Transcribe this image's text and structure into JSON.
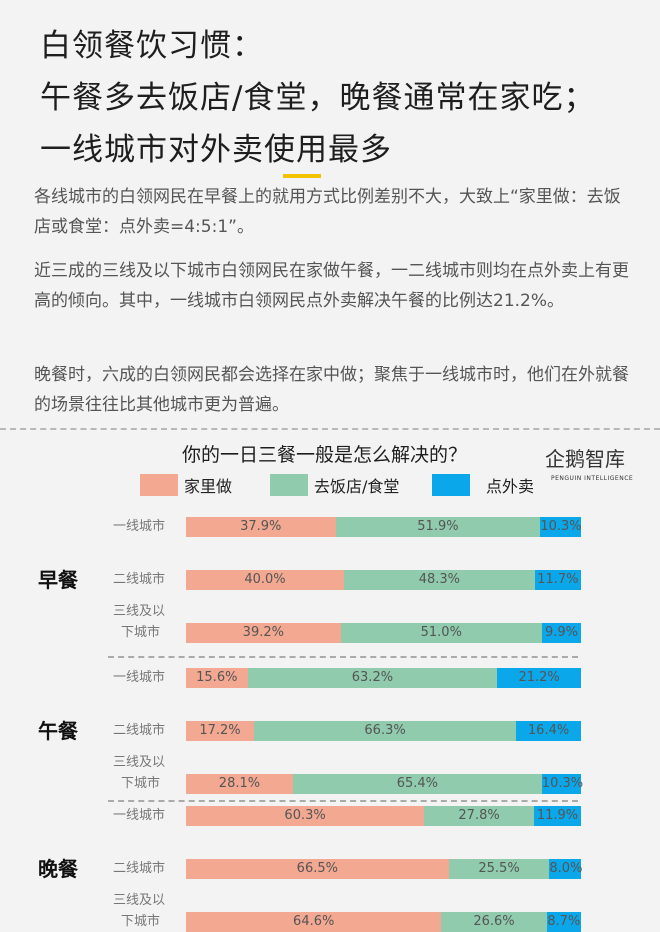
{
  "header": {
    "title_lines": [
      "白领餐饮习惯：",
      "午餐多去饭店/食堂，晚餐通常在家吃；",
      "一线城市对外卖使用最多"
    ],
    "paragraphs": [
      "各线城市的白领网民在早餐上的就用方式比例差别不大，大致上“家里做：去饭店或食堂：点外卖=4:5:1”。",
      "近三成的三线及以下城市白领网民在家做午餐，一二线城市则均在点外卖上有更高的倾向。其中，一线城市白领网民点外卖解决午餐的比例达21.2%。",
      "晚餐时，六成的白领网民都会选择在家中做；聚焦于一线城市时，他们在外就餐的场景往往比其他城市更为普遍。"
    ]
  },
  "logo": {
    "text": "企鹅智库",
    "subtext": "PENGUIN INTELLIGENCE"
  },
  "chart_data": {
    "type": "bar",
    "orientation": "horizontal",
    "stacked": true,
    "percent_stacked": true,
    "title": "你的一日三餐一般是怎么解决的？",
    "legend_position": "top",
    "series": [
      {
        "name": "家里做",
        "color": "#f2a891"
      },
      {
        "name": "去饭店/食堂",
        "color": "#8fcbac"
      },
      {
        "name": "点外卖",
        "color": "#0aa7ea"
      }
    ],
    "groups": [
      {
        "meal": "早餐",
        "rows": [
          {
            "city": [
              "一线城市"
            ],
            "values": [
              37.9,
              51.9,
              10.3
            ],
            "labels": [
              "37.9%",
              "51.9%",
              "10.3%"
            ]
          },
          {
            "city": [
              "二线城市"
            ],
            "values": [
              40.0,
              48.3,
              11.7
            ],
            "labels": [
              "40.0%",
              "48.3%",
              "11.7%"
            ]
          },
          {
            "city": [
              "三线及以",
              "下城市"
            ],
            "values": [
              39.2,
              51.0,
              9.9
            ],
            "labels": [
              "39.2%",
              "51.0%",
              "9.9%"
            ]
          }
        ]
      },
      {
        "meal": "午餐",
        "rows": [
          {
            "city": [
              "一线城市"
            ],
            "values": [
              15.6,
              63.2,
              21.2
            ],
            "labels": [
              "15.6%",
              "63.2%",
              "21.2%"
            ]
          },
          {
            "city": [
              "二线城市"
            ],
            "values": [
              17.2,
              66.3,
              16.4
            ],
            "labels": [
              "17.2%",
              "66.3%",
              "16.4%"
            ]
          },
          {
            "city": [
              "三线及以",
              "下城市"
            ],
            "values": [
              28.1,
              65.4,
              10.3
            ],
            "labels": [
              "28.1%",
              "65.4%",
              "10.3%"
            ]
          }
        ]
      },
      {
        "meal": "晚餐",
        "rows": [
          {
            "city": [
              "一线城市"
            ],
            "values": [
              60.3,
              27.8,
              11.9
            ],
            "labels": [
              "60.3%",
              "27.8%",
              "11.9%"
            ]
          },
          {
            "city": [
              "二线城市"
            ],
            "values": [
              66.5,
              25.5,
              8.0
            ],
            "labels": [
              "66.5%",
              "25.5%",
              "8.0%"
            ]
          },
          {
            "city": [
              "三线及以",
              "下城市"
            ],
            "values": [
              64.6,
              26.6,
              8.7
            ],
            "labels": [
              "64.6%",
              "26.6%",
              "8.7%"
            ]
          }
        ]
      }
    ]
  }
}
